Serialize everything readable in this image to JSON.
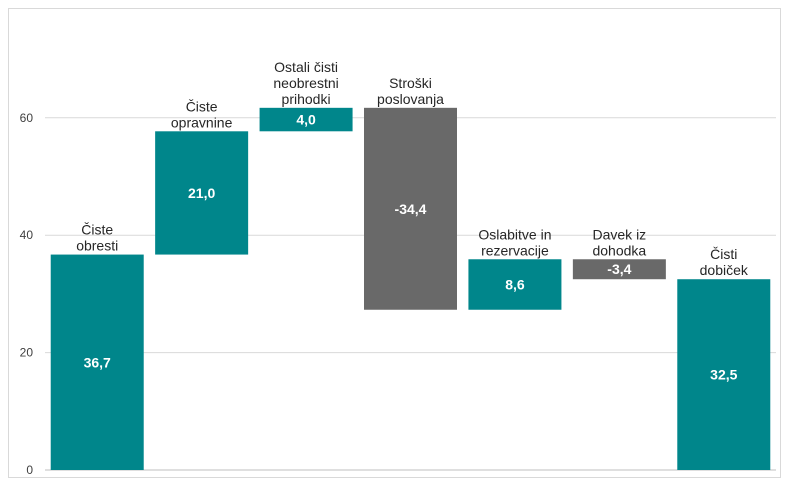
{
  "chart_data": {
    "type": "waterfall",
    "title": "",
    "xlabel": "",
    "ylabel": "",
    "ylim": [
      0,
      80
    ],
    "yticks": [
      0,
      20,
      40,
      60
    ],
    "grid": true,
    "legend": "none",
    "colors": {
      "positive": "#00868B",
      "negative": "#696969",
      "total": "#00868B"
    },
    "steps": [
      {
        "label_lines": [
          "Čiste",
          "obresti"
        ],
        "value": 36.7,
        "value_label": "36,7",
        "kind": "total"
      },
      {
        "label_lines": [
          "Čiste",
          "opravnine"
        ],
        "value": 21.0,
        "value_label": "21,0",
        "kind": "delta"
      },
      {
        "label_lines": [
          "Ostali čisti",
          "neobrestni",
          "prihodki"
        ],
        "value": 4.0,
        "value_label": "4,0",
        "kind": "delta"
      },
      {
        "label_lines": [
          "Stroški",
          "poslovanja"
        ],
        "value": -34.4,
        "value_label": "-34,4",
        "kind": "delta"
      },
      {
        "label_lines": [
          "Oslabitve in",
          "rezervacije"
        ],
        "value": 8.6,
        "value_label": "8,6",
        "kind": "delta"
      },
      {
        "label_lines": [
          "Davek iz",
          "dohodka"
        ],
        "value": -3.4,
        "value_label": "-3,4",
        "kind": "delta"
      },
      {
        "label_lines": [
          "Čisti",
          "dobiček"
        ],
        "value": 32.5,
        "value_label": "32,5",
        "kind": "total"
      }
    ]
  }
}
